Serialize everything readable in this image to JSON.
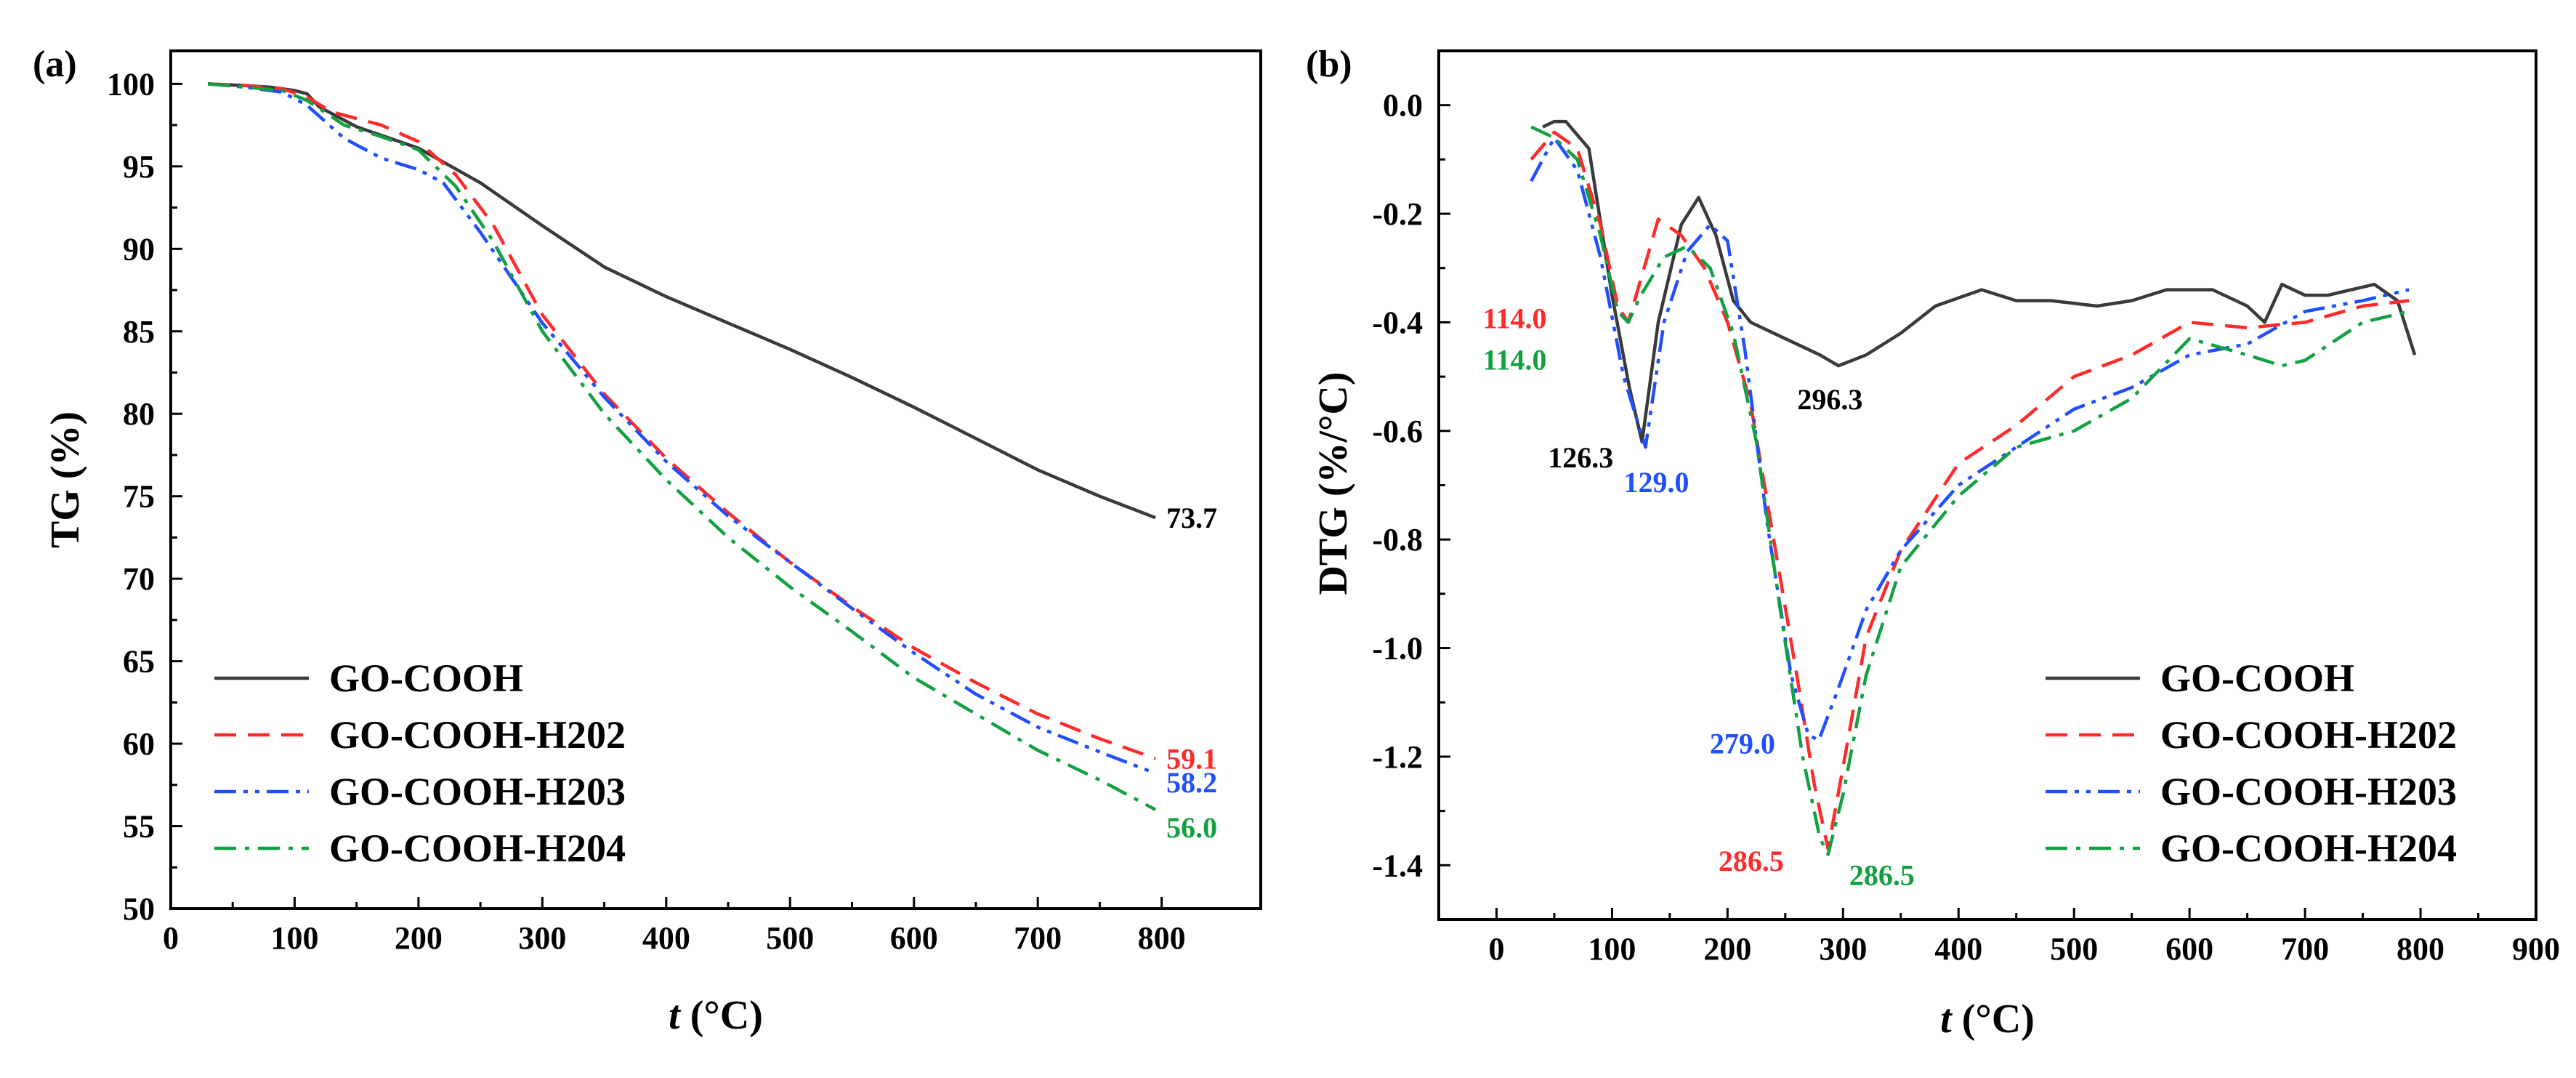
{
  "chart_data": [
    {
      "panel_label": "(a)",
      "type": "line",
      "xlabel_var": "t",
      "xlabel_unit": " (°C)",
      "ylabel": "TG (%)",
      "xlim": [
        0,
        880
      ],
      "ylim": [
        50,
        102
      ],
      "xticks": [
        0,
        100,
        200,
        300,
        400,
        500,
        600,
        700,
        800
      ],
      "yticks": [
        50,
        55,
        60,
        65,
        70,
        75,
        80,
        85,
        90,
        95,
        100
      ],
      "series": [
        {
          "name": "GO-COOH",
          "color": "#3a3a3a",
          "dash": "solid",
          "x": [
            30,
            60,
            80,
            100,
            110,
            120,
            150,
            200,
            250,
            300,
            350,
            400,
            450,
            500,
            550,
            600,
            650,
            700,
            750,
            795
          ],
          "y": [
            100,
            99.9,
            99.8,
            99.6,
            99.4,
            98.6,
            97.4,
            96.1,
            94.0,
            91.4,
            88.9,
            87.1,
            85.5,
            83.9,
            82.2,
            80.4,
            78.5,
            76.6,
            75.0,
            73.7
          ],
          "end_label": "73.7"
        },
        {
          "name": "GO-COOH-H202",
          "color": "#ff2a2a",
          "dash": "dash",
          "x": [
            30,
            60,
            90,
            110,
            130,
            170,
            200,
            230,
            260,
            300,
            350,
            400,
            450,
            500,
            550,
            600,
            650,
            700,
            750,
            795
          ],
          "y": [
            100,
            99.9,
            99.7,
            99.2,
            98.3,
            97.5,
            96.5,
            94.5,
            91.5,
            86.0,
            81.2,
            77.3,
            74.0,
            71.0,
            68.3,
            65.8,
            63.7,
            61.8,
            60.3,
            59.1
          ],
          "end_label": "59.1"
        },
        {
          "name": "GO-COOH-H203",
          "color": "#1f4fff",
          "dash": "dashdotdot",
          "x": [
            30,
            60,
            90,
            110,
            140,
            170,
            200,
            220,
            250,
            300,
            350,
            400,
            450,
            500,
            550,
            600,
            650,
            700,
            750,
            795
          ],
          "y": [
            100,
            99.8,
            99.5,
            98.7,
            96.7,
            95.5,
            94.8,
            94.0,
            91.0,
            85.5,
            81.0,
            77.1,
            73.8,
            71.0,
            68.2,
            65.5,
            63.0,
            61.0,
            59.5,
            58.2
          ],
          "end_label": "58.2"
        },
        {
          "name": "GO-COOH-H204",
          "color": "#12a040",
          "dash": "dashdot",
          "x": [
            30,
            60,
            90,
            110,
            140,
            170,
            200,
            230,
            260,
            300,
            350,
            400,
            450,
            500,
            550,
            600,
            650,
            700,
            750,
            795
          ],
          "y": [
            100,
            99.8,
            99.6,
            99.0,
            97.5,
            96.8,
            96.0,
            93.8,
            90.5,
            85.0,
            80.0,
            76.0,
            72.5,
            69.5,
            66.8,
            64.0,
            61.8,
            59.6,
            57.8,
            56.0
          ],
          "end_label": "56.0"
        }
      ],
      "legend_position": "bottom-left"
    },
    {
      "panel_label": "(b)",
      "type": "line",
      "xlabel_var": "t",
      "xlabel_unit": " (°C)",
      "ylabel": "DTG (%/°C)",
      "xlim": [
        -50,
        900
      ],
      "ylim": [
        -1.5,
        0.1
      ],
      "xticks": [
        0,
        100,
        200,
        300,
        400,
        500,
        600,
        700,
        800,
        900
      ],
      "yticks": [
        -1.4,
        -1.2,
        -1.0,
        -0.8,
        -0.6,
        -0.4,
        -0.2,
        0.0
      ],
      "ytick_labels": [
        "-1.4",
        "-1.2",
        "-1.0",
        "-0.8",
        "-0.6",
        "-0.4",
        "-0.2",
        "0.0"
      ],
      "series": [
        {
          "name": "GO-COOH",
          "color": "#3a3a3a",
          "dash": "solid",
          "x": [
            40,
            50,
            60,
            80,
            100,
            115,
            126,
            140,
            160,
            175,
            190,
            205,
            220,
            240,
            260,
            280,
            296,
            320,
            350,
            380,
            420,
            450,
            480,
            520,
            550,
            580,
            620,
            650,
            665,
            680,
            700,
            720,
            760,
            780,
            795
          ],
          "y": [
            -0.04,
            -0.03,
            -0.03,
            -0.08,
            -0.35,
            -0.52,
            -0.62,
            -0.4,
            -0.22,
            -0.17,
            -0.24,
            -0.36,
            -0.4,
            -0.42,
            -0.44,
            -0.46,
            -0.48,
            -0.46,
            -0.42,
            -0.37,
            -0.34,
            -0.36,
            -0.36,
            -0.37,
            -0.36,
            -0.34,
            -0.34,
            -0.37,
            -0.4,
            -0.33,
            -0.35,
            -0.35,
            -0.33,
            -0.36,
            -0.46
          ]
        },
        {
          "name": "GO-COOH-H202",
          "color": "#ff2a2a",
          "dash": "dash",
          "x": [
            30,
            50,
            70,
            90,
            105,
            114,
            125,
            140,
            160,
            180,
            200,
            220,
            240,
            260,
            275,
            287,
            300,
            320,
            350,
            400,
            450,
            500,
            550,
            600,
            650,
            700,
            750,
            790
          ],
          "y": [
            -0.1,
            -0.05,
            -0.08,
            -0.22,
            -0.37,
            -0.4,
            -0.32,
            -0.21,
            -0.24,
            -0.3,
            -0.4,
            -0.55,
            -0.8,
            -1.05,
            -1.25,
            -1.37,
            -1.22,
            -0.98,
            -0.82,
            -0.66,
            -0.59,
            -0.5,
            -0.46,
            -0.4,
            -0.41,
            -0.4,
            -0.37,
            -0.36
          ]
        },
        {
          "name": "GO-COOH-H203",
          "color": "#1f4fff",
          "dash": "dashdotdot",
          "x": [
            30,
            50,
            70,
            90,
            110,
            129,
            145,
            165,
            185,
            200,
            215,
            235,
            255,
            270,
            279,
            295,
            320,
            350,
            400,
            450,
            500,
            550,
            600,
            650,
            700,
            750,
            790
          ],
          "y": [
            -0.14,
            -0.06,
            -0.12,
            -0.28,
            -0.5,
            -0.63,
            -0.4,
            -0.27,
            -0.22,
            -0.25,
            -0.45,
            -0.78,
            -1.05,
            -1.16,
            -1.17,
            -1.08,
            -0.93,
            -0.82,
            -0.7,
            -0.63,
            -0.56,
            -0.52,
            -0.46,
            -0.44,
            -0.38,
            -0.36,
            -0.34
          ]
        },
        {
          "name": "GO-COOH-H204",
          "color": "#12a040",
          "dash": "dashdot",
          "x": [
            30,
            50,
            70,
            90,
            105,
            114,
            125,
            145,
            165,
            185,
            205,
            225,
            245,
            265,
            280,
            287,
            300,
            320,
            350,
            400,
            450,
            500,
            550,
            600,
            650,
            680,
            700,
            750,
            790
          ],
          "y": [
            -0.04,
            -0.06,
            -0.1,
            -0.24,
            -0.38,
            -0.4,
            -0.35,
            -0.28,
            -0.26,
            -0.3,
            -0.42,
            -0.62,
            -0.92,
            -1.2,
            -1.35,
            -1.38,
            -1.27,
            -1.05,
            -0.85,
            -0.72,
            -0.63,
            -0.6,
            -0.54,
            -0.43,
            -0.46,
            -0.48,
            -0.47,
            -0.4,
            -0.38
          ]
        }
      ],
      "annotations": [
        {
          "text": "114.0",
          "x": 114,
          "y": -0.4,
          "color": "#ff2a2a"
        },
        {
          "text": "114.0",
          "x": 114,
          "y": -0.4,
          "color": "#12a040"
        },
        {
          "text": "126.3",
          "x": 126.3,
          "y": -0.62,
          "color": "#000000"
        },
        {
          "text": "129.0",
          "x": 129,
          "y": -0.63,
          "color": "#1f4fff"
        },
        {
          "text": "296.3",
          "x": 296.3,
          "y": -0.48,
          "color": "#000000"
        },
        {
          "text": "279.0",
          "x": 279,
          "y": -1.17,
          "color": "#1f4fff"
        },
        {
          "text": "286.5",
          "x": 286.5,
          "y": -1.37,
          "color": "#ff2a2a"
        },
        {
          "text": "286.5",
          "x": 286.5,
          "y": -1.38,
          "color": "#12a040"
        }
      ],
      "legend_position": "bottom-right"
    }
  ]
}
